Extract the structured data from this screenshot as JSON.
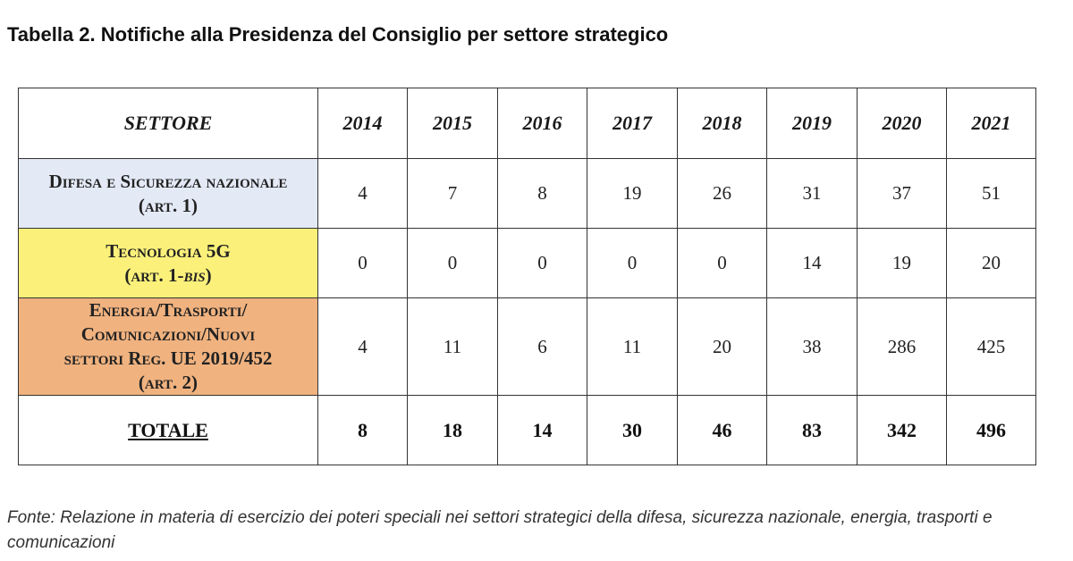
{
  "title": "Tabella 2. Notifiche alla Presidenza del Consiglio per settore strategico",
  "table": {
    "header_sector": "SETTORE",
    "years": [
      "2014",
      "2015",
      "2016",
      "2017",
      "2018",
      "2019",
      "2020",
      "2021"
    ],
    "rows": [
      {
        "sector_line1": "Difesa e Sicurezza nazionale",
        "sector_line2": "(art. 1)",
        "values": [
          "4",
          "7",
          "8",
          "19",
          "26",
          "31",
          "37",
          "51"
        ],
        "color": "#e3e9f5"
      },
      {
        "sector_line1": "Tecnologia 5G",
        "sector_line2_prefix": "(art. 1-",
        "sector_line2_italic": "bis",
        "sector_line2_suffix": ")",
        "values": [
          "0",
          "0",
          "0",
          "0",
          "0",
          "14",
          "19",
          "20"
        ],
        "color": "#fbf17a"
      },
      {
        "sector_line1": "Energia/Trasporti/",
        "sector_line2": "Comunicazioni/Nuovi",
        "sector_line3": "settori Reg. UE 2019/452",
        "sector_line4": "(art. 2)",
        "values": [
          "4",
          "11",
          "6",
          "11",
          "20",
          "38",
          "286",
          "425"
        ],
        "color": "#f0b27f"
      }
    ],
    "total_label": "TOTALE",
    "totals": [
      "8",
      "18",
      "14",
      "30",
      "46",
      "83",
      "342",
      "496"
    ]
  },
  "source": "Fonte: Relazione in materia di esercizio dei poteri speciali nei settori strategici della difesa, sicurezza nazionale, energia, trasporti e comunicazioni"
}
